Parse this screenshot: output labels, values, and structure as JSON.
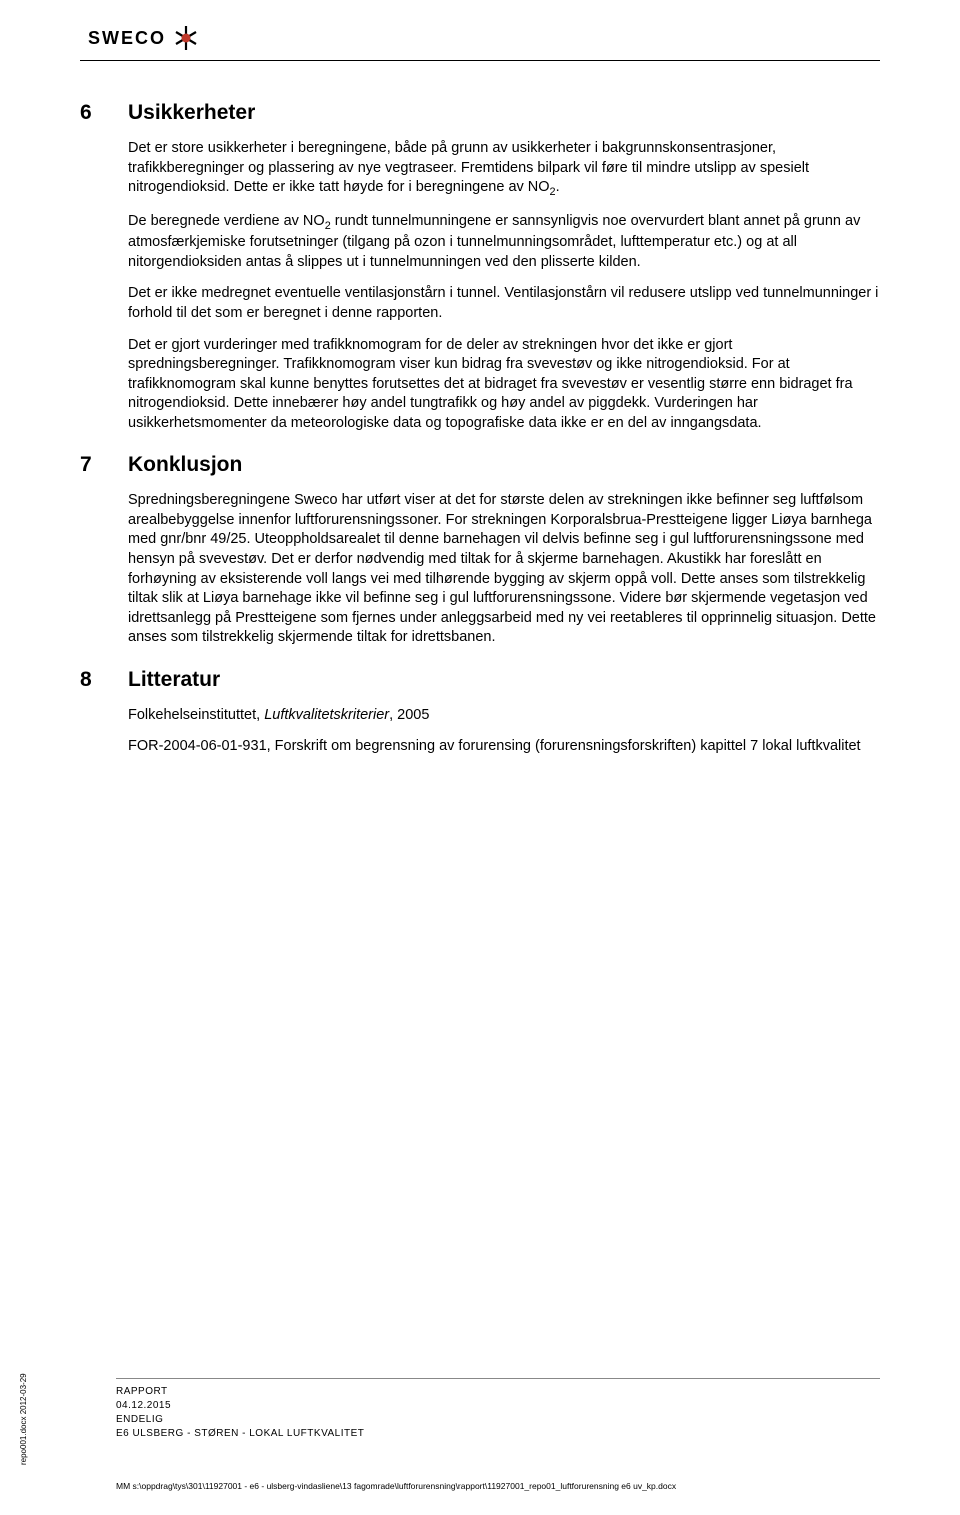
{
  "header": {
    "brand": "SWECO"
  },
  "sections": [
    {
      "num": "6",
      "title": "Usikkerheter",
      "paragraphs": [
        {
          "html": "Det er store usikkerheter i beregningene, både på grunn av usikkerheter i bakgrunnskonsentrasjoner, trafikkberegninger og plassering av nye vegtraseer. Fremtidens bilpark vil føre til mindre utslipp av spesielt nitrogendioksid. Dette er ikke tatt høyde for i beregningene av NO<sub>2</sub>."
        },
        {
          "html": "De beregnede verdiene av NO<sub>2</sub> rundt tunnelmunningene er sannsynligvis noe overvurdert blant annet på grunn av atmosfærkjemiske forutsetninger (tilgang på ozon i tunnelmunningsområdet, lufttemperatur etc.) og at all nitorgendioksiden antas å slippes ut i tunnelmunningen ved den plisserte kilden."
        },
        {
          "html": "Det er ikke medregnet eventuelle ventilasjonstårn i tunnel. Ventilasjonstårn vil redusere utslipp ved tunnelmunninger i forhold til det som er beregnet i denne rapporten."
        },
        {
          "html": "Det er gjort vurderinger med trafikknomogram for de deler av strekningen hvor det ikke er gjort spredningsberegninger. Trafikknomogram viser kun bidrag fra svevestøv og ikke nitrogendioksid. For at trafikknomogram skal kunne benyttes forutsettes det at bidraget fra svevestøv er vesentlig større enn bidraget fra nitrogendioksid. Dette innebærer høy andel tungtrafikk og høy andel av piggdekk. Vurderingen har usikkerhetsmomenter da meteorologiske data og topografiske data ikke er en del av inngangsdata."
        }
      ]
    },
    {
      "num": "7",
      "title": "Konklusjon",
      "paragraphs": [
        {
          "html": "Spredningsberegningene Sweco har utført viser at det for største delen av strekningen ikke befinner seg luftfølsom arealbebyggelse innenfor luftforurensningssoner. For strekningen Korporalsbrua-Prestteigene ligger Liøya barnhega med gnr/bnr 49/25. Uteoppholdsarealet til denne barnehagen vil delvis befinne seg i gul luftforurensningssone med hensyn på svevestøv. Det er derfor nødvendig med tiltak for å skjerme barnehagen. Akustikk har foreslått en forhøyning av eksisterende voll langs vei med tilhørende bygging av skjerm oppå voll. Dette anses som tilstrekkelig tiltak slik at Liøya barnehage ikke vil befinne seg i gul luftforurensningssone. Videre bør skjermende vegetasjon ved idrettsanlegg på Prestteigene som fjernes under anleggsarbeid med ny vei reetableres til opprinnelig situasjon. Dette anses som tilstrekkelig skjermende tiltak for idrettsbanen."
        }
      ]
    },
    {
      "num": "8",
      "title": "Litteratur",
      "paragraphs": [
        {
          "html": "Folkehelseinstituttet, <span class=\"italic\">Luftkvalitetskriterier</span>, 2005"
        },
        {
          "html": "FOR-2004-06-01-931, Forskrift om begrensning av forurensing (forurensningsforskriften) kapittel 7 lokal luftkvalitet"
        }
      ]
    }
  ],
  "footer": {
    "lines": [
      "RAPPORT",
      "04.12.2015",
      "ENDELIG",
      "E6 ULSBERG - STØREN - LOKAL LUFTKVALITET"
    ],
    "path": "MM s:\\oppdrag\\tys\\301\\11927001 - e6 - ulsberg-vindasliene\\13 fagomrade\\luftforurensning\\rapport\\11927001_repo01_luftforurensning e6 uv_kp.docx",
    "sidelabel": "repo001.docx 2012-03-29"
  }
}
